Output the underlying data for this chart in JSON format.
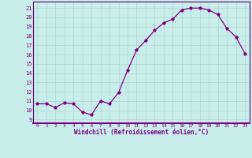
{
  "x": [
    0,
    1,
    2,
    3,
    4,
    5,
    6,
    7,
    8,
    9,
    10,
    11,
    12,
    13,
    14,
    15,
    16,
    17,
    18,
    19,
    20,
    21,
    22,
    23
  ],
  "y": [
    10.7,
    10.7,
    10.3,
    10.8,
    10.7,
    9.8,
    9.5,
    11.0,
    10.7,
    11.9,
    14.3,
    16.5,
    17.5,
    18.6,
    19.4,
    19.8,
    20.8,
    21.0,
    21.0,
    20.8,
    20.3,
    18.8,
    17.9,
    16.1
  ],
  "line_color": "#800080",
  "marker": "*",
  "bg_color": "#c8eeec",
  "grid_color": "#b0d8d4",
  "xlim": [
    -0.5,
    23.5
  ],
  "ylim": [
    8.6,
    21.7
  ],
  "xticks": [
    0,
    1,
    2,
    3,
    4,
    5,
    6,
    7,
    8,
    9,
    10,
    11,
    12,
    13,
    14,
    15,
    16,
    17,
    18,
    19,
    20,
    21,
    22,
    23
  ],
  "yticks": [
    9,
    10,
    11,
    12,
    13,
    14,
    15,
    16,
    17,
    18,
    19,
    20,
    21
  ],
  "tick_label_color": "#800080",
  "xlabel": "Windchill (Refroidissement éolien,°C)",
  "xlabel_color": "#800080",
  "border_color": "#800080",
  "spine_color": "#600060"
}
